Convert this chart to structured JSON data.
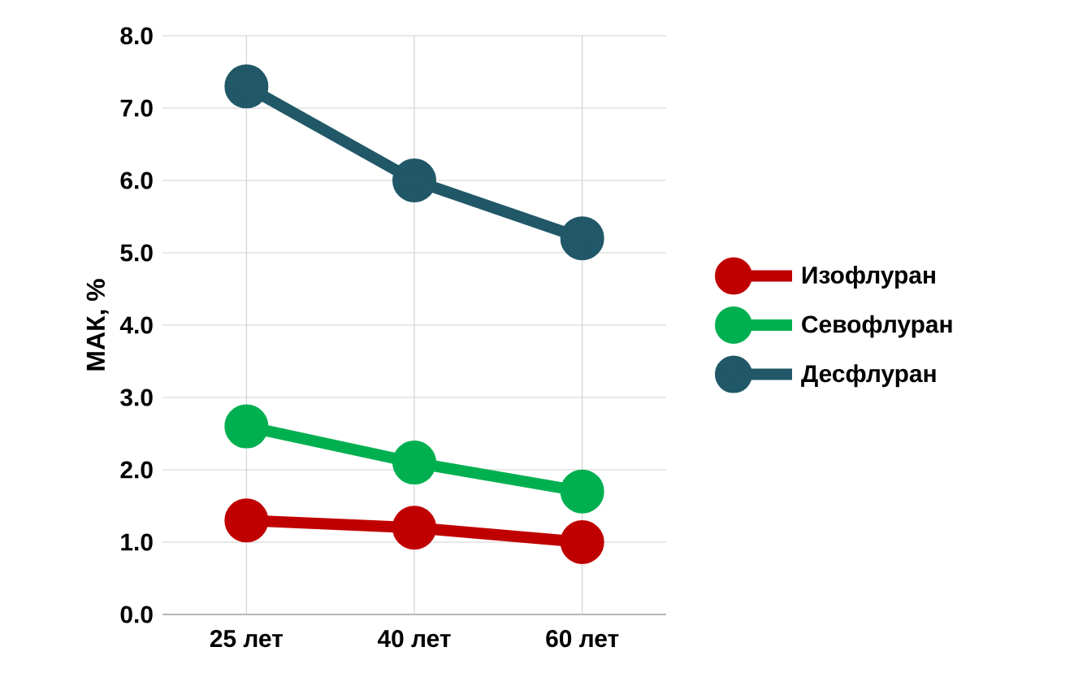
{
  "chart_data": {
    "type": "line",
    "ylabel": "МАК, %",
    "categories": [
      "25 лет",
      "40 лет",
      "60 лет"
    ],
    "series": [
      {
        "name": "Изофлуран",
        "color": "#c00000",
        "values": [
          1.3,
          1.2,
          1.0
        ]
      },
      {
        "name": "Севофлуран",
        "color": "#00b050",
        "values": [
          2.6,
          2.1,
          1.7
        ]
      },
      {
        "name": "Десфлуран",
        "color": "#215868",
        "values": [
          7.3,
          6.0,
          5.2
        ]
      }
    ],
    "ylim": [
      0,
      8
    ],
    "yticks": [
      {
        "value": 0,
        "label": "0.0"
      },
      {
        "value": 1,
        "label": "1.0"
      },
      {
        "value": 2,
        "label": "2.0"
      },
      {
        "value": 3,
        "label": "3.0"
      },
      {
        "value": 4,
        "label": "4.0"
      },
      {
        "value": 5,
        "label": "5.0"
      },
      {
        "value": 6,
        "label": "6.0"
      },
      {
        "value": 7,
        "label": "7.0"
      },
      {
        "value": 8,
        "label": "8.0"
      }
    ],
    "grid": true,
    "legend": "right",
    "marker": "circle"
  }
}
